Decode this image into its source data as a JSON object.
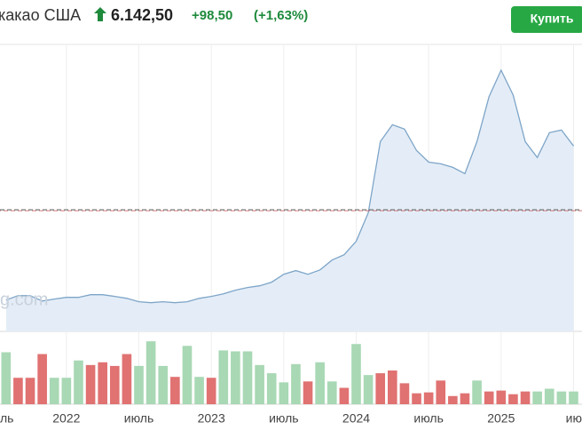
{
  "header": {
    "title": "какао США",
    "price": "6.142,50",
    "change": "+98,50",
    "change_pct": "(+1,63%)",
    "button": "Купить"
  },
  "chart_data": {
    "type": "line",
    "watermark": "g.com",
    "values": [
      2400,
      2580,
      2580,
      2360,
      2440,
      2510,
      2510,
      2620,
      2620,
      2550,
      2470,
      2330,
      2290,
      2330,
      2290,
      2330,
      2470,
      2550,
      2660,
      2810,
      2920,
      2990,
      3140,
      3470,
      3620,
      3470,
      3650,
      4060,
      4280,
      4840,
      6020,
      8970,
      9670,
      9490,
      8600,
      8120,
      8050,
      7900,
      7640,
      8970,
      10830,
      11930,
      10900,
      8970,
      8310,
      9340,
      9450,
      8790
    ],
    "color": "#7ea5c8",
    "fill": "#e4edf7",
    "ylim": [
      1100,
      13000
    ],
    "price_line": 6142.5,
    "xlim": [
      -0.5,
      47.7
    ],
    "xticks": [
      {
        "value": -1,
        "label": "ль"
      },
      {
        "value": 5,
        "label": "2022"
      },
      {
        "value": 11,
        "label": "июль"
      },
      {
        "value": 17,
        "label": "2023"
      },
      {
        "value": 23,
        "label": "июль"
      },
      {
        "value": 29,
        "label": "2024"
      },
      {
        "value": 35,
        "label": "июль"
      },
      {
        "value": 41,
        "label": "2025"
      },
      {
        "value": 47,
        "label": "ию"
      }
    ],
    "grid": true,
    "volume": [
      57,
      29,
      29,
      55,
      29,
      29,
      48,
      43,
      46,
      42,
      55,
      42,
      69,
      42,
      30,
      64,
      30,
      29,
      59,
      58,
      58,
      43,
      34,
      24,
      44,
      25,
      46,
      25,
      18,
      66,
      32,
      34,
      37,
      23,
      12,
      13,
      26,
      9,
      12,
      26,
      14,
      15,
      11,
      14,
      14,
      17,
      14,
      14
    ],
    "volume_colors": [
      "#a8d8b4",
      "#e07272",
      "#e07272",
      "#e07272",
      "#a8d8b4",
      "#a8d8b4",
      "#a8d8b4",
      "#e07272",
      "#e07272",
      "#e07272",
      "#e07272",
      "#a8d8b4",
      "#a8d8b4",
      "#a8d8b4",
      "#e07272",
      "#a8d8b4",
      "#a8d8b4",
      "#e07272",
      "#a8d8b4",
      "#a8d8b4",
      "#a8d8b4",
      "#a8d8b4",
      "#a8d8b4",
      "#a8d8b4",
      "#a8d8b4",
      "#e07272",
      "#a8d8b4",
      "#a8d8b4",
      "#e07272",
      "#a8d8b4",
      "#a8d8b4",
      "#e07272",
      "#e07272",
      "#e07272",
      "#e07272",
      "#e07272",
      "#e07272",
      "#e07272",
      "#e07272",
      "#a8d8b4",
      "#e07272",
      "#e07272",
      "#e07272",
      "#e07272",
      "#a8d8b4",
      "#a8d8b4",
      "#a8d8b4",
      "#a8d8b4"
    ],
    "vlim": [
      0,
      75
    ]
  }
}
